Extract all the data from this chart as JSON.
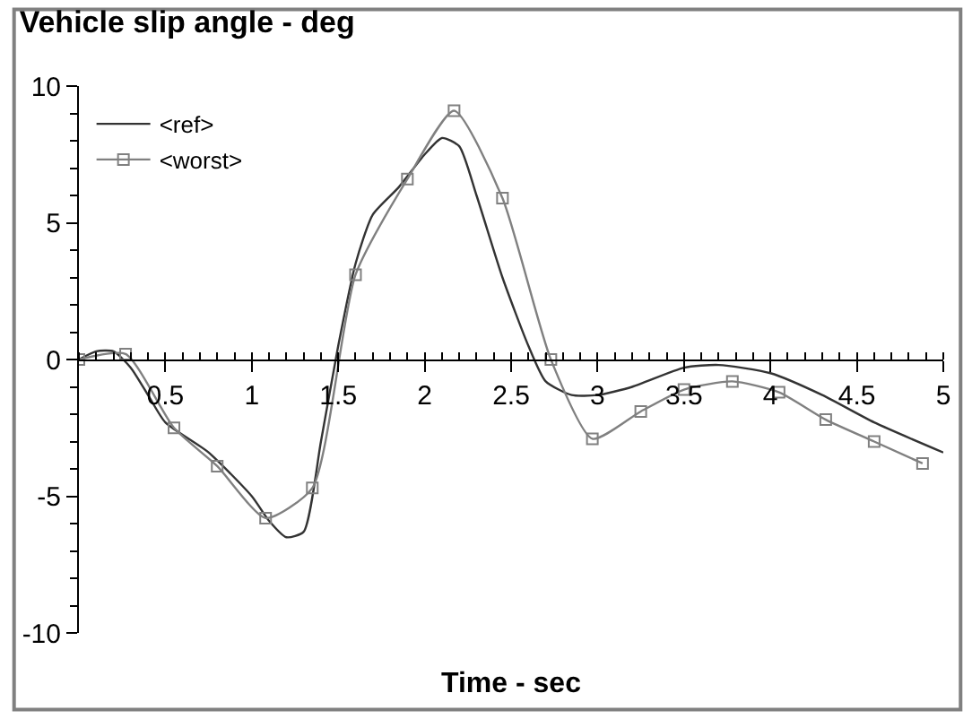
{
  "chart_data": {
    "type": "line",
    "title": "Vehicle slip angle - deg",
    "xlabel": "Time - sec",
    "xlim": [
      0,
      5
    ],
    "xticks": [
      0.5,
      1,
      1.5,
      2,
      2.5,
      3,
      3.5,
      4,
      4.5,
      5
    ],
    "ylim": [
      -10,
      10
    ],
    "yticks": [
      -10,
      -5,
      0,
      5,
      10
    ],
    "legend": "top left",
    "series": [
      {
        "name": "<ref>",
        "color": "#333333",
        "marker": "none",
        "x": [
          0,
          0.1,
          0.2,
          0.3,
          0.4,
          0.5,
          0.75,
          1.0,
          1.1,
          1.2,
          1.3,
          1.4,
          1.5,
          1.6,
          1.7,
          1.85,
          2.0,
          2.1,
          2.2,
          2.3,
          2.45,
          2.6,
          2.7,
          2.85,
          3.0,
          3.2,
          3.5,
          3.7,
          4.0,
          4.3,
          4.6,
          5.0
        ],
        "values": [
          0,
          0.3,
          0.3,
          -0.3,
          -1.3,
          -2.3,
          -3.4,
          -5.0,
          -5.9,
          -6.5,
          -6.3,
          -3.0,
          0.5,
          3.5,
          5.3,
          6.3,
          7.5,
          8.1,
          7.8,
          6.0,
          3.0,
          0.5,
          -0.8,
          -1.3,
          -1.3,
          -1.0,
          -0.3,
          -0.2,
          -0.5,
          -1.3,
          -2.3,
          -3.4
        ]
      },
      {
        "name": "<worst>",
        "color": "#808080",
        "marker": "square",
        "x": [
          0,
          0.27,
          0.55,
          0.8,
          1.08,
          1.35,
          1.6,
          1.9,
          2.17,
          2.45,
          2.73,
          2.97,
          3.25,
          3.5,
          3.78,
          4.05,
          4.32,
          4.6,
          4.88
        ],
        "values": [
          0,
          0.2,
          -2.5,
          -3.9,
          -5.8,
          -4.7,
          3.1,
          6.6,
          9.1,
          5.9,
          0,
          -2.9,
          -1.9,
          -1.1,
          -0.8,
          -1.2,
          -2.2,
          -3.0,
          -3.8
        ]
      }
    ]
  }
}
